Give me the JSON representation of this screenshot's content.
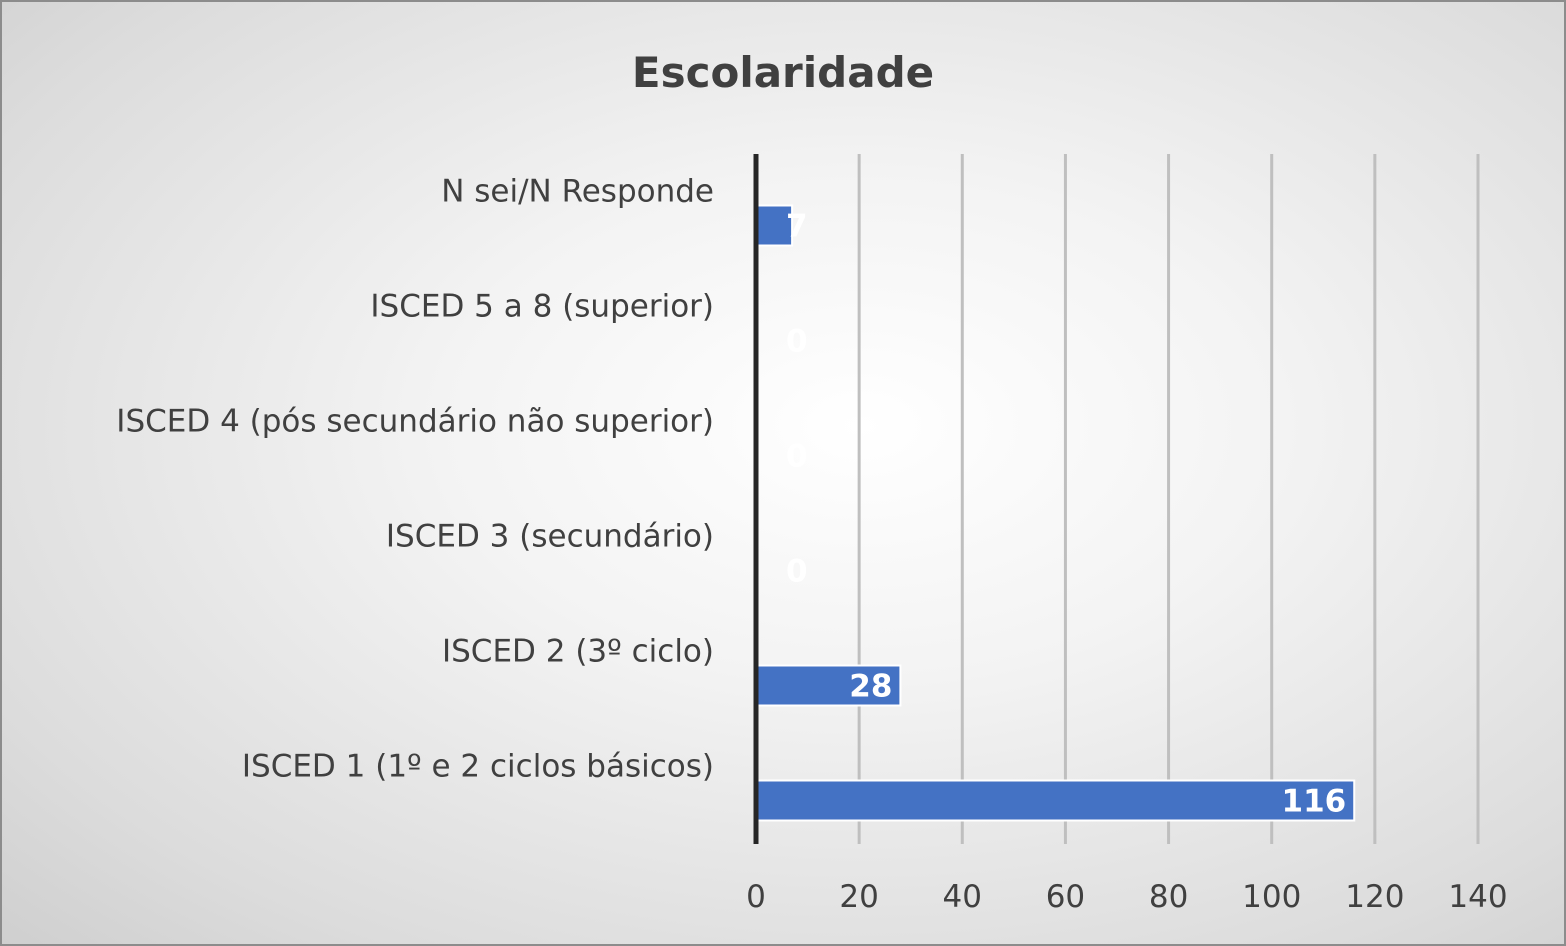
{
  "chart_data": {
    "type": "bar",
    "orientation": "horizontal",
    "title": "Escolaridade",
    "xlabel": "",
    "ylabel": "",
    "categories": [
      "ISCED 1 (1º e 2 ciclos básicos)",
      "ISCED 2 (3º ciclo)",
      "ISCED 3 (secundário)",
      "ISCED 4 (pós secundário não superior)",
      "ISCED 5 a 8 (superior)",
      "N sei/N Responde"
    ],
    "values": [
      116,
      28,
      0,
      0,
      0,
      7
    ],
    "data_labels": [
      "116",
      "28",
      "0",
      "0",
      "0",
      "7"
    ],
    "xlim": [
      0,
      140
    ],
    "x_ticks": [
      0,
      20,
      40,
      60,
      80,
      100,
      120,
      140
    ],
    "x_tick_labels": [
      "0",
      "20",
      "40",
      "60",
      "80",
      "100",
      "120",
      "140"
    ],
    "grid": true,
    "legend": "none",
    "bar_color": "#4472c4",
    "data_label_color": "#ffffff",
    "text_color": "#404040"
  }
}
